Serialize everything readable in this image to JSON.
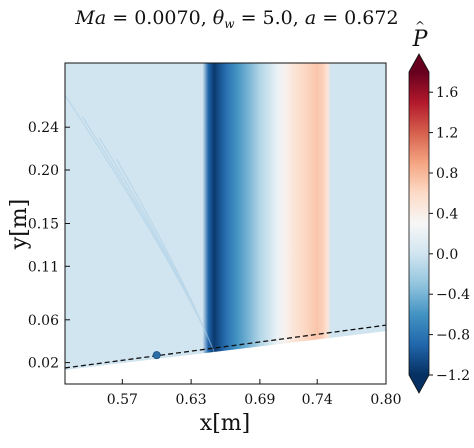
{
  "chart_data": {
    "type": "heatmap",
    "title": "Ma = 0.0070, θ_w = 5.0, a = 0.672",
    "title_parts": {
      "ma_label": "Ma",
      "ma_value": "0.0070",
      "theta_label": "θ",
      "theta_sub": "w",
      "theta_value": "5.0",
      "a_label": "a",
      "a_value": "0.672"
    },
    "xlabel": "x[m]",
    "ylabel": "y[m]",
    "xlim": [
      0.52,
      0.8
    ],
    "ylim": [
      0.0,
      0.3
    ],
    "x_ticks": [
      0.57,
      0.63,
      0.69,
      0.74,
      0.8
    ],
    "x_tick_labels": [
      "0.57",
      "0.63",
      "0.69",
      "0.74",
      "0.80"
    ],
    "y_ticks": [
      0.02,
      0.06,
      0.11,
      0.15,
      0.2,
      0.24
    ],
    "y_tick_labels": [
      "0.02",
      "0.06",
      "0.11",
      "0.15",
      "0.20",
      "0.24"
    ],
    "grid": false,
    "background_value": 0.0,
    "pressure_profile_x": [
      0.52,
      0.64,
      0.645,
      0.65,
      0.66,
      0.67,
      0.68,
      0.69,
      0.7,
      0.705,
      0.712,
      0.72,
      0.73,
      0.74,
      0.745,
      0.749,
      0.752,
      0.8
    ],
    "pressure_profile_value": [
      0.0,
      0.0,
      -0.9,
      -1.15,
      -0.85,
      -0.6,
      -0.4,
      -0.15,
      0.05,
      0.2,
      0.35,
      0.5,
      0.62,
      0.72,
      0.65,
      0.5,
      0.0,
      0.0
    ],
    "wall_line": {
      "x": [
        0.52,
        0.8
      ],
      "y": [
        0.015,
        0.055
      ],
      "style": "dashed"
    },
    "marker": {
      "x": 0.6,
      "y": 0.027,
      "color": "#2e6ea8"
    },
    "colorbar": {
      "label": "P",
      "ticks": [
        -1.2,
        -0.8,
        -0.4,
        0.0,
        0.4,
        0.8,
        1.2,
        1.6
      ],
      "tick_labels": [
        "−1.2",
        "−0.8",
        "−0.4",
        "0.0",
        "0.4",
        "0.8",
        "1.2",
        "1.6"
      ],
      "vmin": -1.2,
      "vmax": 1.8,
      "extend": "both",
      "colormap": "RdBu_r",
      "colors": [
        "#053061",
        "#2166ac",
        "#4393c3",
        "#92c5de",
        "#d1e5f0",
        "#f7f7f7",
        "#fddbc7",
        "#f4a582",
        "#d6604d",
        "#b2182b",
        "#67001f"
      ]
    }
  }
}
